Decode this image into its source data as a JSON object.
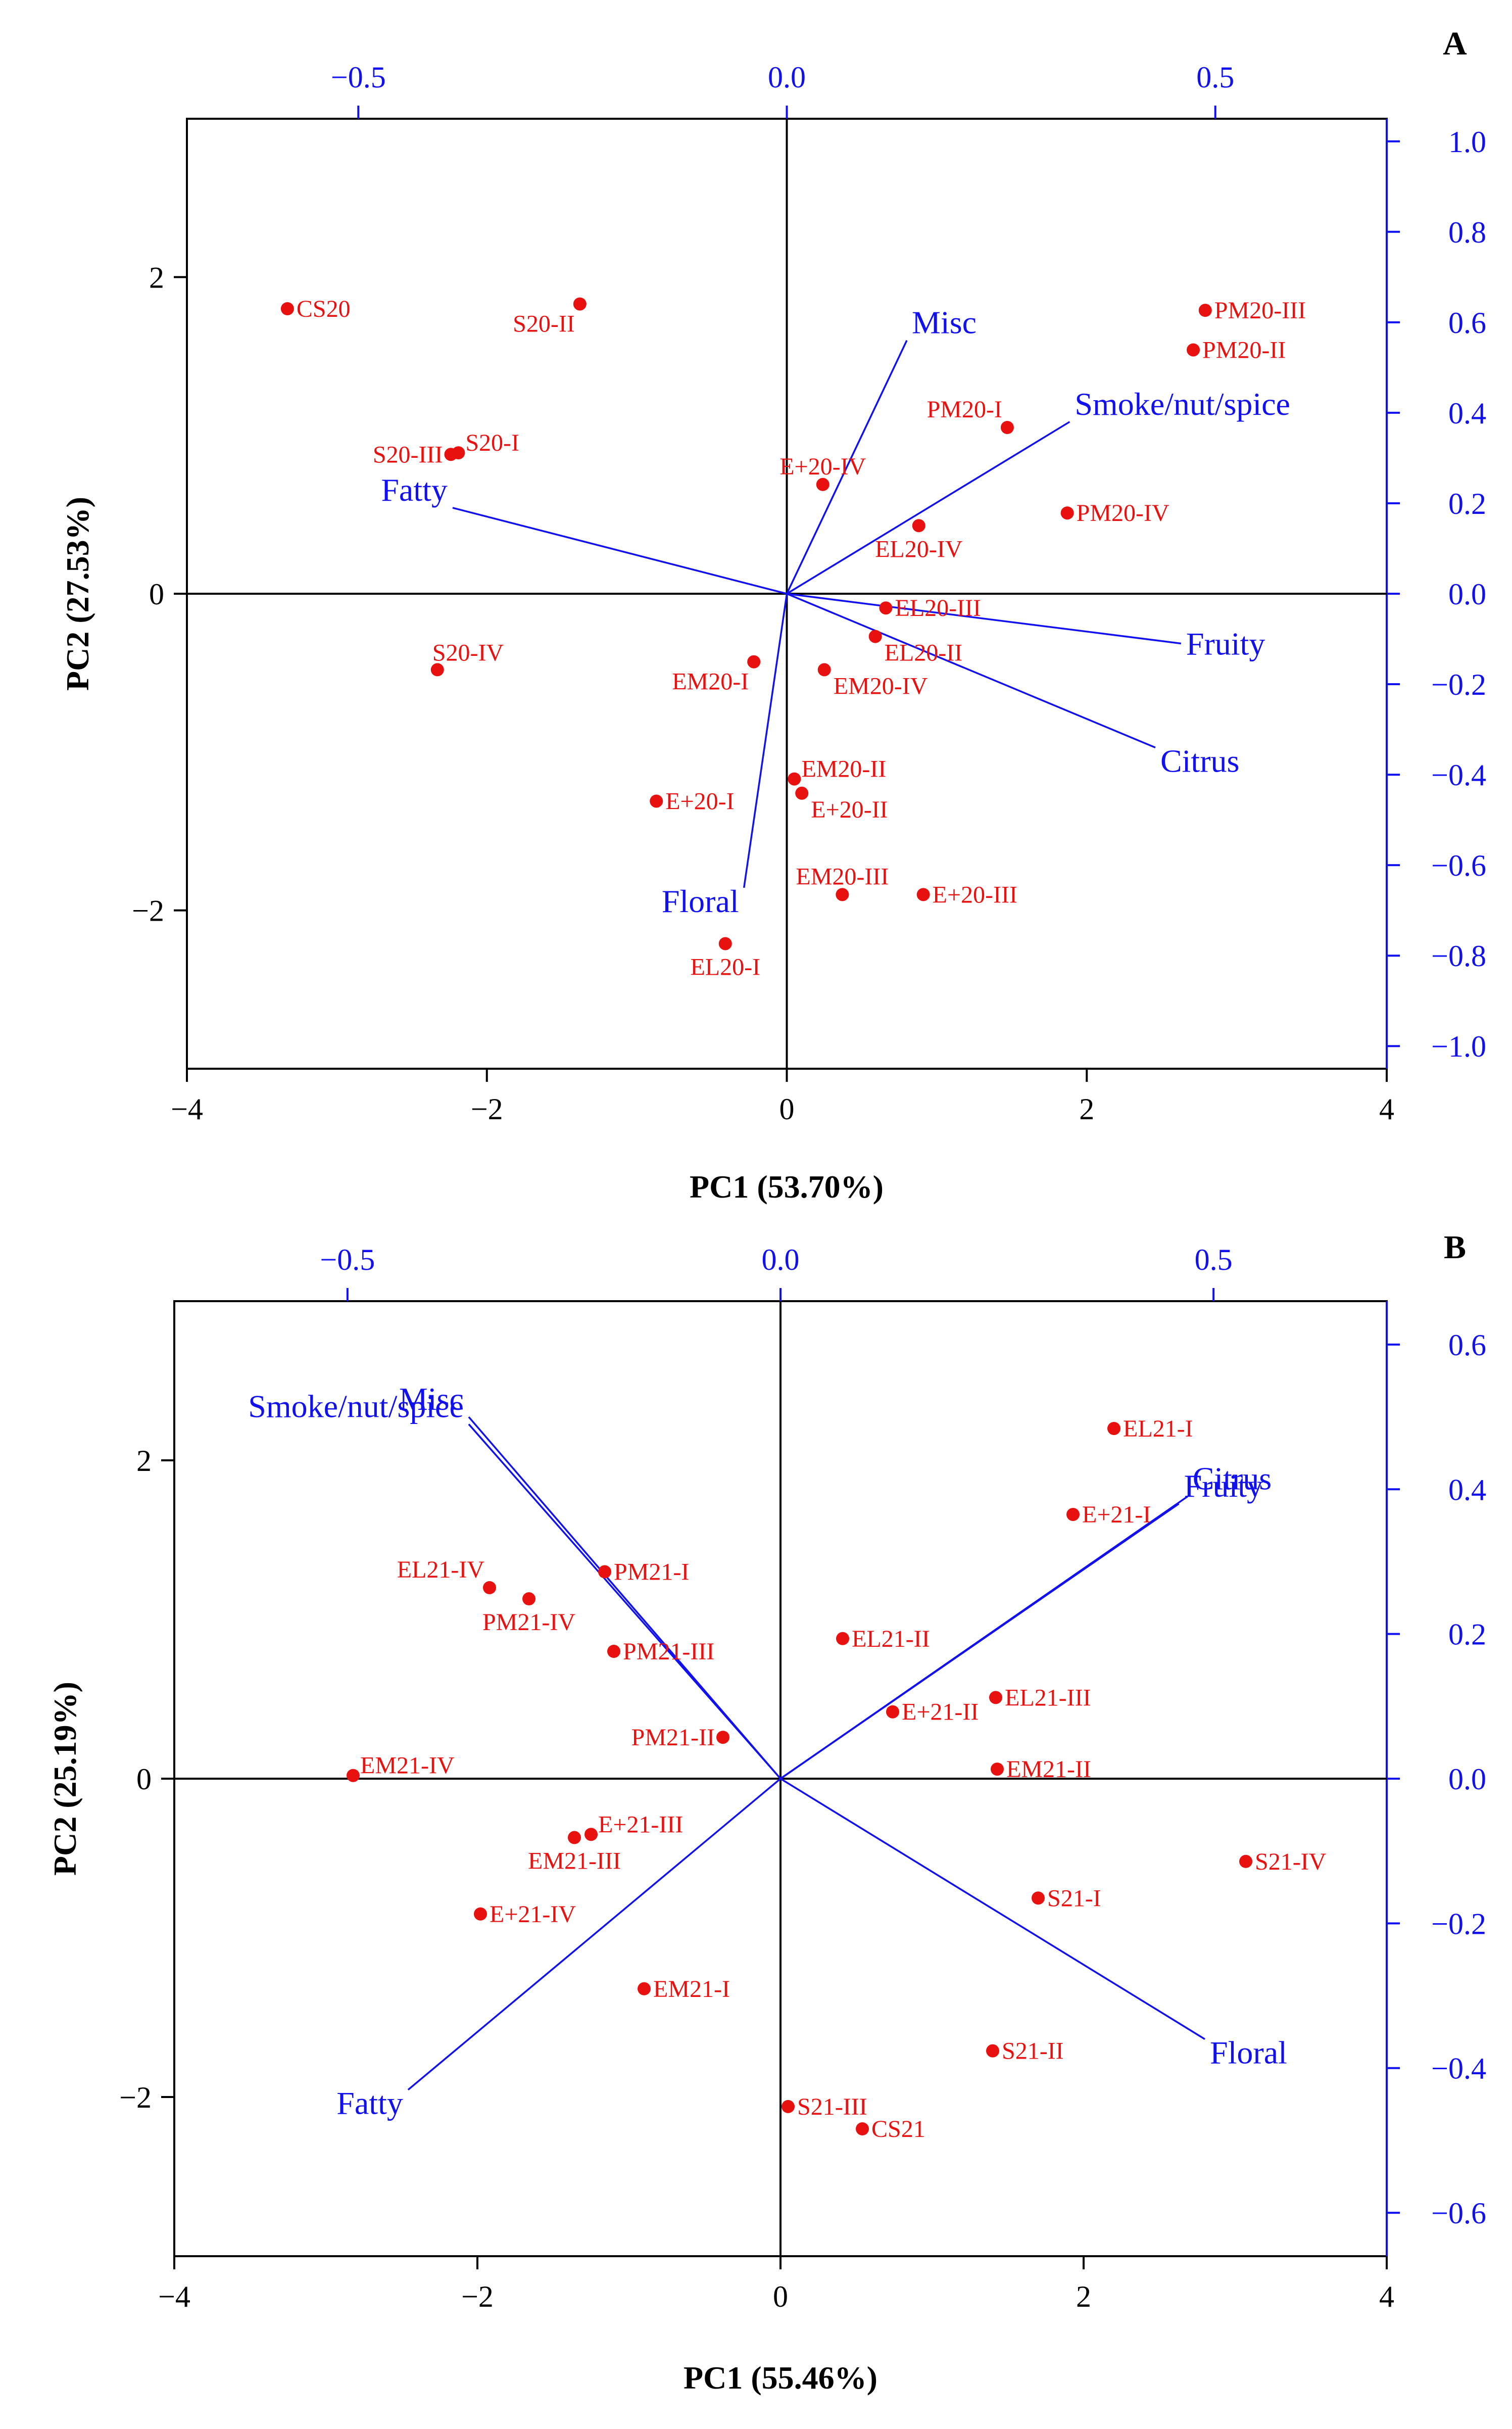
{
  "colors": {
    "points": "#e8110f",
    "loadings": "#1010f0",
    "axes": "#000000",
    "right_axis": "#1010f0"
  },
  "chart_data": [
    {
      "type": "scatter",
      "panel": "A",
      "xlabel": "PC1 (53.70%)",
      "ylabel": "PC2 (27.53%)",
      "xlim": [
        -4,
        4
      ],
      "ylim": [
        -3,
        3
      ],
      "x_ticks": [
        -4,
        -2,
        0,
        2,
        4
      ],
      "x_tick_labels": [
        "−4",
        "−2",
        "0",
        "2",
        "4"
      ],
      "y_ticks": [
        -2,
        0,
        2
      ],
      "y_tick_labels": [
        "−2",
        "0",
        "2"
      ],
      "top_lim": [
        -0.7,
        0.7
      ],
      "top_ticks": [
        -0.5,
        0.0,
        0.5
      ],
      "top_tick_labels": [
        "−0.5",
        "0.0",
        "0.5"
      ],
      "right_lim": [
        -1.05,
        1.05
      ],
      "right_ticks": [
        1.0,
        0.8,
        0.6,
        0.4,
        0.2,
        0.0,
        -0.2,
        -0.4,
        -0.6,
        -0.8,
        -1.0
      ],
      "right_tick_labels": [
        "1.0",
        "0.8",
        "0.6",
        "0.4",
        "0.2",
        "0.0",
        "−0.2",
        "−0.4",
        "−0.6",
        "−0.8",
        "−1.0"
      ],
      "scores": [
        {
          "label": "CS20",
          "x": -3.33,
          "y": 1.8,
          "pos": "r"
        },
        {
          "label": "S20-II",
          "x": -1.38,
          "y": 1.83,
          "pos": "bl"
        },
        {
          "label": "S20-III",
          "x": -2.24,
          "y": 0.88,
          "pos": "l"
        },
        {
          "label": "S20-I",
          "x": -2.19,
          "y": 0.89,
          "pos": "rt"
        },
        {
          "label": "S20-IV",
          "x": -2.33,
          "y": -0.48,
          "pos": "tr"
        },
        {
          "label": "E+20-IV",
          "x": 0.24,
          "y": 0.69,
          "pos": "t"
        },
        {
          "label": "PM20-I",
          "x": 1.47,
          "y": 1.05,
          "pos": "tl"
        },
        {
          "label": "PM20-III",
          "x": 2.79,
          "y": 1.79,
          "pos": "r"
        },
        {
          "label": "PM20-II",
          "x": 2.71,
          "y": 1.54,
          "pos": "r"
        },
        {
          "label": "PM20-IV",
          "x": 1.87,
          "y": 0.51,
          "pos": "r"
        },
        {
          "label": "EL20-IV",
          "x": 0.88,
          "y": 0.43,
          "pos": "b"
        },
        {
          "label": "EL20-III",
          "x": 0.66,
          "y": -0.09,
          "pos": "r"
        },
        {
          "label": "EL20-II",
          "x": 0.59,
          "y": -0.27,
          "pos": "rb"
        },
        {
          "label": "EM20-IV",
          "x": 0.25,
          "y": -0.48,
          "pos": "rb"
        },
        {
          "label": "EM20-I",
          "x": -0.22,
          "y": -0.43,
          "pos": "bl"
        },
        {
          "label": "EM20-II",
          "x": 0.05,
          "y": -1.17,
          "pos": "rt"
        },
        {
          "label": "E+20-II",
          "x": 0.1,
          "y": -1.26,
          "pos": "rb"
        },
        {
          "label": "E+20-I",
          "x": -0.87,
          "y": -1.31,
          "pos": "r"
        },
        {
          "label": "EM20-III",
          "x": 0.37,
          "y": -1.9,
          "pos": "t"
        },
        {
          "label": "E+20-III",
          "x": 0.91,
          "y": -1.9,
          "pos": "r"
        },
        {
          "label": "EL20-I",
          "x": -0.41,
          "y": -2.21,
          "pos": "b"
        }
      ],
      "loadings": [
        {
          "label": "Misc",
          "x": 0.14,
          "y": 0.56
        },
        {
          "label": "Smoke/nut/spice",
          "x": 0.33,
          "y": 0.38
        },
        {
          "label": "Fatty",
          "x": -0.39,
          "y": 0.19
        },
        {
          "label": "Fruity",
          "x": 0.46,
          "y": -0.11
        },
        {
          "label": "Citrus",
          "x": 0.43,
          "y": -0.34
        },
        {
          "label": "Floral",
          "x": -0.05,
          "y": -0.65
        }
      ]
    },
    {
      "type": "scatter",
      "panel": "B",
      "xlabel": "PC1 (55.46%)",
      "ylabel": "PC2 (25.19%)",
      "xlim": [
        -4,
        4
      ],
      "ylim": [
        -3,
        3
      ],
      "x_ticks": [
        -4,
        -2,
        0,
        2,
        4
      ],
      "x_tick_labels": [
        "−4",
        "−2",
        "0",
        "2",
        "4"
      ],
      "y_ticks": [
        -2,
        0,
        2
      ],
      "y_tick_labels": [
        "−2",
        "0",
        "2"
      ],
      "top_lim": [
        -0.7,
        0.7
      ],
      "top_ticks": [
        -0.5,
        0.0,
        0.5
      ],
      "top_tick_labels": [
        "−0.5",
        "0.0",
        "0.5"
      ],
      "right_lim": [
        -0.66,
        0.66
      ],
      "right_ticks": [
        0.6,
        0.4,
        0.2,
        0.0,
        -0.2,
        -0.4,
        -0.6
      ],
      "right_tick_labels": [
        "0.6",
        "0.4",
        "0.2",
        "0.0",
        "−0.2",
        "−0.4",
        "−0.6"
      ],
      "scores": [
        {
          "label": "EL21-I",
          "x": 2.2,
          "y": 2.2,
          "pos": "r"
        },
        {
          "label": "E+21-I",
          "x": 1.93,
          "y": 1.66,
          "pos": "r"
        },
        {
          "label": "EL21-IV",
          "x": -1.92,
          "y": 1.2,
          "pos": "tl"
        },
        {
          "label": "PM21-IV",
          "x": -1.66,
          "y": 1.13,
          "pos": "b"
        },
        {
          "label": "PM21-I",
          "x": -1.16,
          "y": 1.3,
          "pos": "r"
        },
        {
          "label": "PM21-III",
          "x": -1.1,
          "y": 0.8,
          "pos": "r"
        },
        {
          "label": "PM21-II",
          "x": -0.38,
          "y": 0.26,
          "pos": "l"
        },
        {
          "label": "EL21-II",
          "x": 0.41,
          "y": 0.88,
          "pos": "r"
        },
        {
          "label": "EL21-III",
          "x": 1.42,
          "y": 0.51,
          "pos": "r"
        },
        {
          "label": "E+21-II",
          "x": 0.74,
          "y": 0.42,
          "pos": "r"
        },
        {
          "label": "EM21-II",
          "x": 1.43,
          "y": 0.06,
          "pos": "r"
        },
        {
          "label": "EM21-IV",
          "x": -2.82,
          "y": 0.02,
          "pos": "rt"
        },
        {
          "label": "E+21-III",
          "x": -1.25,
          "y": -0.35,
          "pos": "rt"
        },
        {
          "label": "EM21-III",
          "x": -1.36,
          "y": -0.37,
          "pos": "b"
        },
        {
          "label": "E+21-IV",
          "x": -1.98,
          "y": -0.85,
          "pos": "r"
        },
        {
          "label": "EM21-I",
          "x": -0.9,
          "y": -1.32,
          "pos": "r"
        },
        {
          "label": "S21-IV",
          "x": 3.07,
          "y": -0.52,
          "pos": "r"
        },
        {
          "label": "S21-I",
          "x": 1.7,
          "y": -0.75,
          "pos": "r"
        },
        {
          "label": "S21-II",
          "x": 1.4,
          "y": -1.71,
          "pos": "r"
        },
        {
          "label": "S21-III",
          "x": 0.05,
          "y": -2.06,
          "pos": "r"
        },
        {
          "label": "CS21",
          "x": 0.54,
          "y": -2.2,
          "pos": "r"
        }
      ],
      "loadings": [
        {
          "label": "Misc",
          "x": -0.36,
          "y": 0.5
        },
        {
          "label": "Smoke/nut/spice",
          "x": -0.36,
          "y": 0.49
        },
        {
          "label": "Citrus",
          "x": 0.47,
          "y": 0.39
        },
        {
          "label": "Fruity",
          "x": 0.46,
          "y": 0.38
        },
        {
          "label": "Fatty",
          "x": -0.43,
          "y": -0.43
        },
        {
          "label": "Floral",
          "x": 0.49,
          "y": -0.36
        }
      ]
    }
  ],
  "panel_labels": [
    "A",
    "B"
  ]
}
